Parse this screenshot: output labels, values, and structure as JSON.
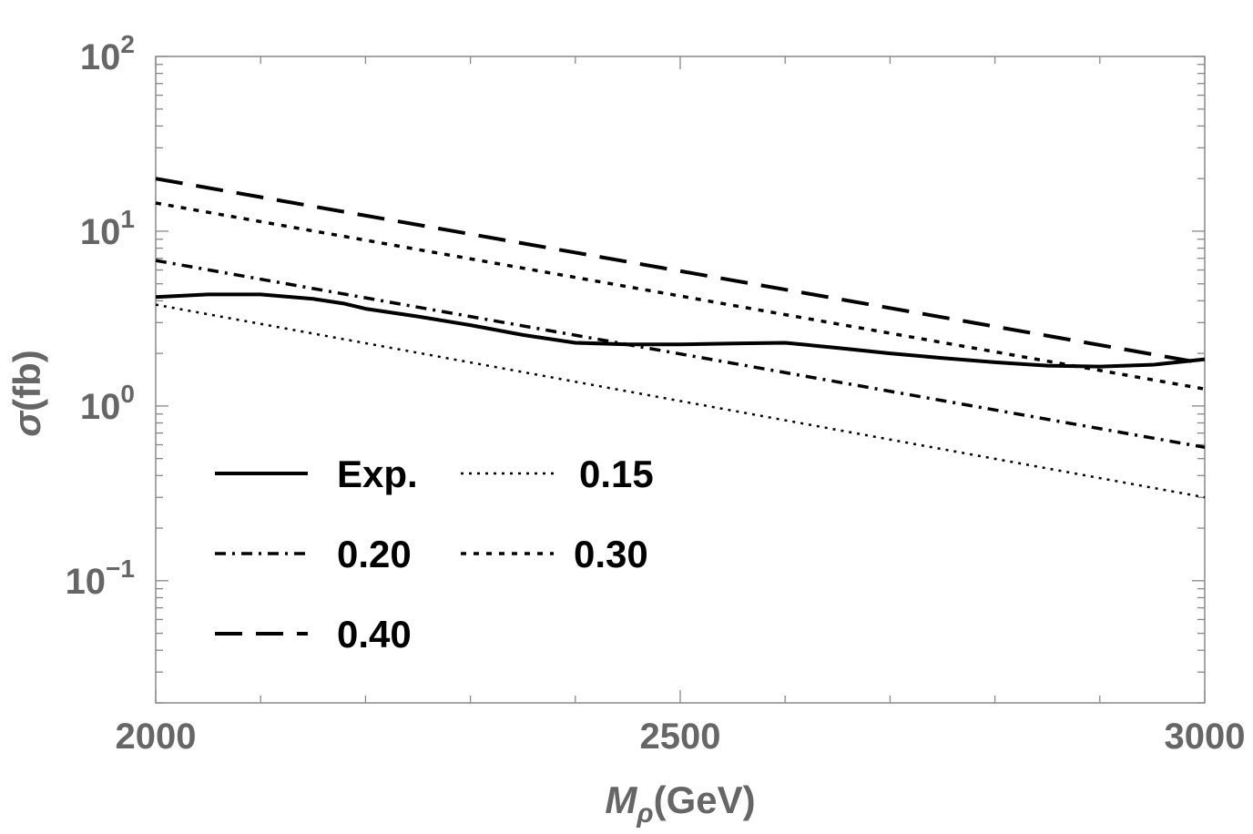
{
  "chart_data": {
    "type": "line",
    "title": "",
    "xlabel": {
      "main": "M",
      "sub": "ρ",
      "unit": "(GeV)"
    },
    "ylabel": {
      "symbol": "σ",
      "unit": "(fb)"
    },
    "xlim": [
      2000,
      3000
    ],
    "ylim": [
      0.02,
      100
    ],
    "yscale": "log",
    "x_ticks": [
      {
        "value": 2000,
        "label": "2000"
      },
      {
        "value": 2500,
        "label": "2500"
      },
      {
        "value": 3000,
        "label": "3000"
      }
    ],
    "y_ticks": [
      {
        "value": 0.1,
        "base": "10",
        "exp": "−1"
      },
      {
        "value": 1,
        "base": "10",
        "exp": "0"
      },
      {
        "value": 10,
        "base": "10",
        "exp": "1"
      },
      {
        "value": 100,
        "base": "10",
        "exp": "2"
      }
    ],
    "grid": false,
    "legend_position": "bottom-left",
    "series": [
      {
        "name": "Exp.",
        "style": "solid",
        "x": [
          2000,
          2050,
          2100,
          2150,
          2180,
          2200,
          2250,
          2300,
          2350,
          2400,
          2450,
          2500,
          2550,
          2600,
          2650,
          2700,
          2750,
          2800,
          2850,
          2900,
          2950,
          3000
        ],
        "y": [
          4.2,
          4.35,
          4.35,
          4.1,
          3.85,
          3.6,
          3.25,
          2.9,
          2.55,
          2.3,
          2.25,
          2.25,
          2.28,
          2.3,
          2.15,
          2.0,
          1.88,
          1.78,
          1.7,
          1.68,
          1.72,
          1.85
        ]
      },
      {
        "name": "0.15",
        "style": "dotted",
        "x": [
          2000,
          3000
        ],
        "y": [
          3.8,
          0.3
        ]
      },
      {
        "name": "0.20",
        "style": "dashdot",
        "x": [
          2000,
          3000
        ],
        "y": [
          6.8,
          0.58
        ]
      },
      {
        "name": "0.30",
        "style": "shortdash",
        "x": [
          2000,
          3000
        ],
        "y": [
          14.5,
          1.25
        ]
      },
      {
        "name": "0.40",
        "style": "longdash",
        "x": [
          2000,
          3000
        ],
        "y": [
          20.0,
          1.75
        ]
      }
    ],
    "colors": {
      "axis": "#888888",
      "label": "#666666",
      "line": "#000000",
      "background": "#ffffff"
    }
  }
}
